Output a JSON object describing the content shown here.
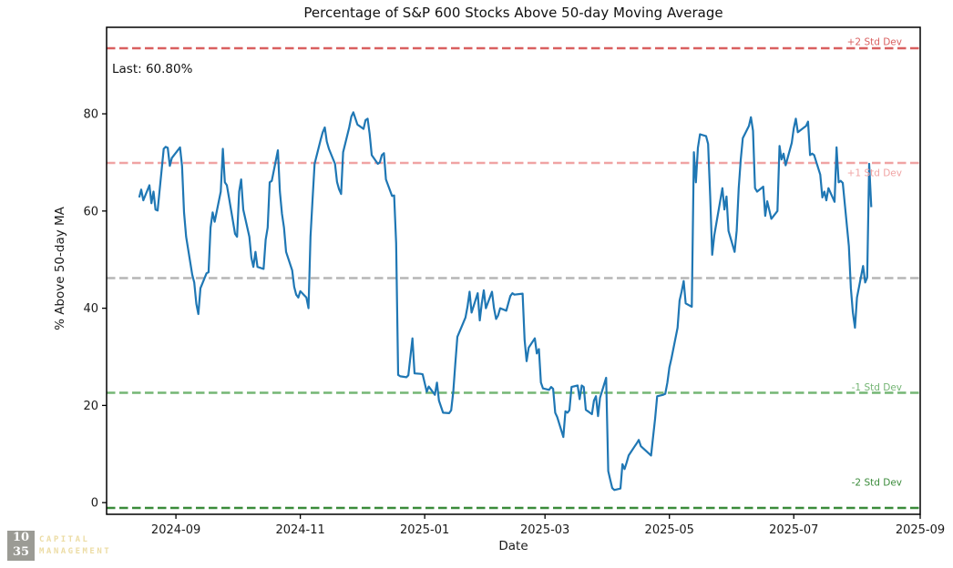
{
  "page": {
    "background": "#ffffff"
  },
  "chart_data": {
    "type": "line",
    "title": "Percentage of S&P 600 Stocks Above 50-day Moving Average",
    "xlabel": "Date",
    "ylabel": "% Above 50-day MA",
    "annotation": "Last: 60.80%",
    "last_value": 60.8,
    "grid": false,
    "legend_position": "none",
    "line_color": "#1f77b4",
    "axis_color": "#000000",
    "x_domain": [
      "2024-07-29",
      "2025-09-01"
    ],
    "ylim": [
      -2.4,
      97.8
    ],
    "y_ticks": [
      0,
      20,
      40,
      60,
      80
    ],
    "x_ticks": [
      {
        "date": "2024-09-01",
        "label": "2024-09"
      },
      {
        "date": "2024-11-01",
        "label": "2024-11"
      },
      {
        "date": "2025-01-01",
        "label": "2025-01"
      },
      {
        "date": "2025-03-01",
        "label": "2025-03"
      },
      {
        "date": "2025-05-01",
        "label": "2025-05"
      },
      {
        "date": "2025-07-01",
        "label": "2025-07"
      },
      {
        "date": "2025-09-01",
        "label": "2025-09"
      }
    ],
    "hlines": [
      {
        "name": "plus-2-std-dev",
        "label": "+2 Std Dev",
        "value": 93.5,
        "color": "#d95f5f",
        "label_dy": -7
      },
      {
        "name": "plus-1-std-dev",
        "label": "+1 Std Dev",
        "value": 69.9,
        "color": "#f0a3a3",
        "label_dy": 11
      },
      {
        "name": "mean",
        "label": "",
        "value": 46.2,
        "color": "#b5b5b5",
        "label_dy": 0
      },
      {
        "name": "minus-1-std-dev",
        "label": "-1 Std Dev",
        "value": 22.6,
        "color": "#74b574",
        "label_dy": -6
      },
      {
        "name": "minus-2-std-dev",
        "label": "-2 Std Dev",
        "value": -1.1,
        "color": "#3a8b3a",
        "label_dy": -28
      }
    ],
    "series": [
      {
        "name": "pct_above_50dma",
        "points": [
          [
            "2024-08-14",
            62.8
          ],
          [
            "2024-08-15",
            64.4
          ],
          [
            "2024-08-16",
            62.2
          ],
          [
            "2024-08-19",
            65.3
          ],
          [
            "2024-08-20",
            61.6
          ],
          [
            "2024-08-21",
            64.0
          ],
          [
            "2024-08-22",
            60.3
          ],
          [
            "2024-08-23",
            60.1
          ],
          [
            "2024-08-26",
            72.8
          ],
          [
            "2024-08-27",
            73.2
          ],
          [
            "2024-08-28",
            73.0
          ],
          [
            "2024-08-29",
            69.3
          ],
          [
            "2024-08-30",
            70.9
          ],
          [
            "2024-09-03",
            73.1
          ],
          [
            "2024-09-04",
            69.3
          ],
          [
            "2024-09-05",
            59.7
          ],
          [
            "2024-09-06",
            54.7
          ],
          [
            "2024-09-09",
            46.9
          ],
          [
            "2024-09-10",
            45.3
          ],
          [
            "2024-09-11",
            40.9
          ],
          [
            "2024-09-12",
            38.8
          ],
          [
            "2024-09-13",
            44.1
          ],
          [
            "2024-09-16",
            47.2
          ],
          [
            "2024-09-17",
            47.4
          ],
          [
            "2024-09-18",
            56.6
          ],
          [
            "2024-09-19",
            59.7
          ],
          [
            "2024-09-20",
            57.8
          ],
          [
            "2024-09-23",
            64.0
          ],
          [
            "2024-09-24",
            72.8
          ],
          [
            "2024-09-25",
            65.9
          ],
          [
            "2024-09-26",
            65.3
          ],
          [
            "2024-09-27",
            62.8
          ],
          [
            "2024-09-30",
            55.3
          ],
          [
            "2024-10-01",
            54.7
          ],
          [
            "2024-10-02",
            64.0
          ],
          [
            "2024-10-03",
            66.5
          ],
          [
            "2024-10-04",
            60.3
          ],
          [
            "2024-10-07",
            54.7
          ],
          [
            "2024-10-08",
            50.4
          ],
          [
            "2024-10-09",
            48.5
          ],
          [
            "2024-10-10",
            51.6
          ],
          [
            "2024-10-11",
            48.5
          ],
          [
            "2024-10-14",
            48.1
          ],
          [
            "2024-10-15",
            54.1
          ],
          [
            "2024-10-16",
            56.6
          ],
          [
            "2024-10-17",
            65.9
          ],
          [
            "2024-10-18",
            66.2
          ],
          [
            "2024-10-21",
            72.5
          ],
          [
            "2024-10-22",
            64.0
          ],
          [
            "2024-10-23",
            59.4
          ],
          [
            "2024-10-24",
            56.6
          ],
          [
            "2024-10-25",
            51.6
          ],
          [
            "2024-10-28",
            47.8
          ],
          [
            "2024-10-29",
            44.4
          ],
          [
            "2024-10-30",
            42.8
          ],
          [
            "2024-10-31",
            42.2
          ],
          [
            "2024-11-01",
            43.5
          ],
          [
            "2024-11-04",
            42.2
          ],
          [
            "2024-11-05",
            40.0
          ],
          [
            "2024-11-06",
            54.7
          ],
          [
            "2024-11-07",
            62.2
          ],
          [
            "2024-11-08",
            69.7
          ],
          [
            "2024-11-11",
            74.7
          ],
          [
            "2024-11-12",
            76.2
          ],
          [
            "2024-11-13",
            77.2
          ],
          [
            "2024-11-14",
            74.3
          ],
          [
            "2024-11-15",
            72.8
          ],
          [
            "2024-11-18",
            69.7
          ],
          [
            "2024-11-19",
            66.0
          ],
          [
            "2024-11-20",
            64.5
          ],
          [
            "2024-11-21",
            63.5
          ],
          [
            "2024-11-22",
            72.1
          ],
          [
            "2024-11-25",
            77.2
          ],
          [
            "2024-11-26",
            79.4
          ],
          [
            "2024-11-27",
            80.3
          ],
          [
            "2024-11-29",
            77.8
          ],
          [
            "2024-12-02",
            76.9
          ],
          [
            "2024-12-03",
            78.7
          ],
          [
            "2024-12-04",
            79.0
          ],
          [
            "2024-12-05",
            75.9
          ],
          [
            "2024-12-06",
            71.5
          ],
          [
            "2024-12-09",
            69.7
          ],
          [
            "2024-12-10",
            70.0
          ],
          [
            "2024-12-11",
            71.5
          ],
          [
            "2024-12-12",
            71.9
          ],
          [
            "2024-12-13",
            66.5
          ],
          [
            "2024-12-16",
            63.1
          ],
          [
            "2024-12-17",
            63.2
          ],
          [
            "2024-12-18",
            53.4
          ],
          [
            "2024-12-19",
            26.3
          ],
          [
            "2024-12-20",
            26.0
          ],
          [
            "2024-12-23",
            25.8
          ],
          [
            "2024-12-24",
            26.2
          ],
          [
            "2024-12-26",
            33.8
          ],
          [
            "2024-12-27",
            26.6
          ],
          [
            "2024-12-30",
            26.5
          ],
          [
            "2024-12-31",
            26.4
          ],
          [
            "2025-01-02",
            22.8
          ],
          [
            "2025-01-03",
            23.9
          ],
          [
            "2025-01-06",
            22.2
          ],
          [
            "2025-01-07",
            24.7
          ],
          [
            "2025-01-08",
            21.0
          ],
          [
            "2025-01-10",
            18.5
          ],
          [
            "2025-01-13",
            18.4
          ],
          [
            "2025-01-14",
            19.0
          ],
          [
            "2025-01-15",
            22.8
          ],
          [
            "2025-01-16",
            28.5
          ],
          [
            "2025-01-17",
            34.1
          ],
          [
            "2025-01-21",
            38.1
          ],
          [
            "2025-01-22",
            40.3
          ],
          [
            "2025-01-23",
            43.4
          ],
          [
            "2025-01-24",
            39.1
          ],
          [
            "2025-01-27",
            43.1
          ],
          [
            "2025-01-28",
            37.5
          ],
          [
            "2025-01-29",
            41.0
          ],
          [
            "2025-01-30",
            43.7
          ],
          [
            "2025-01-31",
            40.0
          ],
          [
            "2025-02-03",
            43.4
          ],
          [
            "2025-02-04",
            40.0
          ],
          [
            "2025-02-05",
            37.8
          ],
          [
            "2025-02-06",
            38.5
          ],
          [
            "2025-02-07",
            40.0
          ],
          [
            "2025-02-10",
            39.5
          ],
          [
            "2025-02-11",
            41.0
          ],
          [
            "2025-02-12",
            42.5
          ],
          [
            "2025-02-13",
            43.1
          ],
          [
            "2025-02-14",
            42.8
          ],
          [
            "2025-02-18",
            43.0
          ],
          [
            "2025-02-19",
            33.5
          ],
          [
            "2025-02-20",
            29.1
          ],
          [
            "2025-02-21",
            31.9
          ],
          [
            "2025-02-24",
            33.8
          ],
          [
            "2025-02-25",
            30.7
          ],
          [
            "2025-02-26",
            31.6
          ],
          [
            "2025-02-27",
            24.7
          ],
          [
            "2025-02-28",
            23.5
          ],
          [
            "2025-03-03",
            23.2
          ],
          [
            "2025-03-04",
            23.8
          ],
          [
            "2025-03-05",
            23.4
          ],
          [
            "2025-03-06",
            18.5
          ],
          [
            "2025-03-07",
            17.6
          ],
          [
            "2025-03-10",
            13.5
          ],
          [
            "2025-03-11",
            18.8
          ],
          [
            "2025-03-12",
            18.5
          ],
          [
            "2025-03-13",
            19.0
          ],
          [
            "2025-03-14",
            23.8
          ],
          [
            "2025-03-17",
            24.1
          ],
          [
            "2025-03-18",
            21.3
          ],
          [
            "2025-03-19",
            24.1
          ],
          [
            "2025-03-20",
            23.8
          ],
          [
            "2025-03-21",
            19.1
          ],
          [
            "2025-03-24",
            18.2
          ],
          [
            "2025-03-25",
            21.0
          ],
          [
            "2025-03-26",
            21.9
          ],
          [
            "2025-03-27",
            17.8
          ],
          [
            "2025-03-28",
            21.6
          ],
          [
            "2025-03-31",
            25.7
          ],
          [
            "2025-04-01",
            6.5
          ],
          [
            "2025-04-02",
            4.7
          ],
          [
            "2025-04-03",
            3.0
          ],
          [
            "2025-04-04",
            2.6
          ],
          [
            "2025-04-07",
            2.9
          ],
          [
            "2025-04-08",
            7.9
          ],
          [
            "2025-04-09",
            6.9
          ],
          [
            "2025-04-10",
            8.2
          ],
          [
            "2025-04-11",
            9.7
          ],
          [
            "2025-04-14",
            11.6
          ],
          [
            "2025-04-15",
            12.2
          ],
          [
            "2025-04-16",
            12.9
          ],
          [
            "2025-04-17",
            11.6
          ],
          [
            "2025-04-21",
            10.1
          ],
          [
            "2025-04-22",
            9.7
          ],
          [
            "2025-04-23",
            13.5
          ],
          [
            "2025-04-24",
            17.2
          ],
          [
            "2025-04-25",
            21.9
          ],
          [
            "2025-04-28",
            22.2
          ],
          [
            "2025-04-29",
            22.4
          ],
          [
            "2025-04-30",
            24.7
          ],
          [
            "2025-05-01",
            27.8
          ],
          [
            "2025-05-02",
            29.7
          ],
          [
            "2025-05-05",
            36.0
          ],
          [
            "2025-05-06",
            41.6
          ],
          [
            "2025-05-07",
            43.4
          ],
          [
            "2025-05-08",
            45.6
          ],
          [
            "2025-05-09",
            41.0
          ],
          [
            "2025-05-12",
            40.3
          ],
          [
            "2025-05-13",
            72.1
          ],
          [
            "2025-05-14",
            65.9
          ],
          [
            "2025-05-15",
            73.0
          ],
          [
            "2025-05-16",
            75.8
          ],
          [
            "2025-05-19",
            75.4
          ],
          [
            "2025-05-20",
            73.8
          ],
          [
            "2025-05-21",
            63.0
          ],
          [
            "2025-05-22",
            51.0
          ],
          [
            "2025-05-23",
            55.0
          ],
          [
            "2025-05-27",
            64.7
          ],
          [
            "2025-05-28",
            60.3
          ],
          [
            "2025-05-29",
            63.0
          ],
          [
            "2025-05-30",
            55.9
          ],
          [
            "2025-06-02",
            51.6
          ],
          [
            "2025-06-03",
            56.0
          ],
          [
            "2025-06-04",
            64.7
          ],
          [
            "2025-06-05",
            70.5
          ],
          [
            "2025-06-06",
            75.0
          ],
          [
            "2025-06-09",
            77.5
          ],
          [
            "2025-06-10",
            79.3
          ],
          [
            "2025-06-11",
            76.5
          ],
          [
            "2025-06-12",
            64.7
          ],
          [
            "2025-06-13",
            64.0
          ],
          [
            "2025-06-16",
            65.0
          ],
          [
            "2025-06-17",
            59.0
          ],
          [
            "2025-06-18",
            62.0
          ],
          [
            "2025-06-20",
            58.4
          ],
          [
            "2025-06-23",
            60.0
          ],
          [
            "2025-06-24",
            73.4
          ],
          [
            "2025-06-25",
            70.6
          ],
          [
            "2025-06-26",
            71.8
          ],
          [
            "2025-06-27",
            69.4
          ],
          [
            "2025-06-30",
            74.0
          ],
          [
            "2025-07-01",
            77.0
          ],
          [
            "2025-07-02",
            79.0
          ],
          [
            "2025-07-03",
            76.2
          ],
          [
            "2025-07-07",
            77.5
          ],
          [
            "2025-07-08",
            78.4
          ],
          [
            "2025-07-09",
            71.5
          ],
          [
            "2025-07-10",
            71.8
          ],
          [
            "2025-07-11",
            71.5
          ],
          [
            "2025-07-14",
            67.5
          ],
          [
            "2025-07-15",
            62.8
          ],
          [
            "2025-07-16",
            64.0
          ],
          [
            "2025-07-17",
            62.2
          ],
          [
            "2025-07-18",
            64.7
          ],
          [
            "2025-07-21",
            61.9
          ],
          [
            "2025-07-22",
            73.1
          ],
          [
            "2025-07-23",
            65.9
          ],
          [
            "2025-07-24",
            66.2
          ],
          [
            "2025-07-25",
            65.8
          ],
          [
            "2025-07-28",
            52.8
          ],
          [
            "2025-07-29",
            44.1
          ],
          [
            "2025-07-30",
            39.1
          ],
          [
            "2025-07-31",
            36.0
          ],
          [
            "2025-08-01",
            42.2
          ],
          [
            "2025-08-04",
            48.7
          ],
          [
            "2025-08-05",
            45.3
          ],
          [
            "2025-08-06",
            46.3
          ],
          [
            "2025-08-07",
            69.7
          ],
          [
            "2025-08-08",
            60.8
          ]
        ]
      }
    ]
  },
  "branding": {
    "logo_line1": "10",
    "logo_line2": "35",
    "company_line1": "CAPITAL",
    "company_line2": "MANAGEMENT"
  }
}
